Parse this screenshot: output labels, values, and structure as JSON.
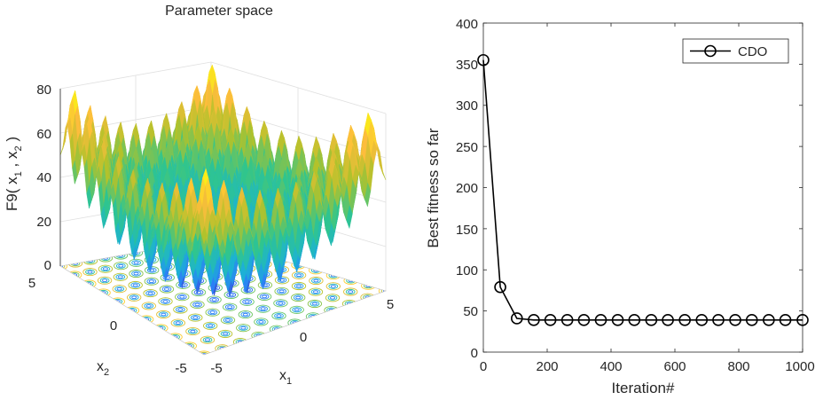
{
  "chart_data": [
    {
      "type": "surface3d",
      "title": "Parameter space",
      "function_name": "F9",
      "zlabel_prefix": "F9(",
      "zlabel_x1": "x",
      "zlabel_x1_sub": "1",
      "zlabel_sep": ",",
      "zlabel_x2": "x",
      "zlabel_x2_sub": "2",
      "zlabel_suffix": ")",
      "xlabel": "x",
      "xlabel_sub": "1",
      "ylabel": "x",
      "ylabel_sub": "2",
      "x_range": [
        -5,
        5
      ],
      "y_range": [
        -5,
        5
      ],
      "z_range": [
        0,
        80
      ],
      "x_ticks": [
        "-5",
        "0",
        "5"
      ],
      "y_ticks": [
        "-5",
        "0",
        "5"
      ],
      "z_ticks": [
        "0",
        "20",
        "40",
        "60",
        "80"
      ],
      "colormap": [
        "#3e26a8",
        "#2c7ef7",
        "#1cb2d4",
        "#2fc58e",
        "#b2c22b",
        "#fdbd3c",
        "#f9fb0e"
      ],
      "contour_floor": true
    },
    {
      "type": "line",
      "xlabel": "Iteration#",
      "ylabel": "Best fitness so far",
      "xlim": [
        0,
        1000
      ],
      "ylim": [
        0,
        400
      ],
      "x_ticks": [
        "0",
        "200",
        "400",
        "600",
        "800",
        "1000"
      ],
      "y_ticks": [
        "0",
        "50",
        "100",
        "150",
        "200",
        "250",
        "300",
        "350",
        "400"
      ],
      "legend_location": "top-right",
      "series": [
        {
          "name": "CDO",
          "color": "#000000",
          "marker": "circle",
          "x": [
            0,
            53,
            105,
            158,
            210,
            263,
            315,
            368,
            421,
            473,
            526,
            578,
            631,
            684,
            736,
            789,
            841,
            894,
            946,
            1000
          ],
          "y": [
            355,
            79,
            41,
            39,
            39,
            39,
            39,
            39,
            39,
            39,
            39,
            39,
            39,
            39,
            39,
            39,
            39,
            39,
            39,
            39
          ]
        }
      ]
    }
  ]
}
